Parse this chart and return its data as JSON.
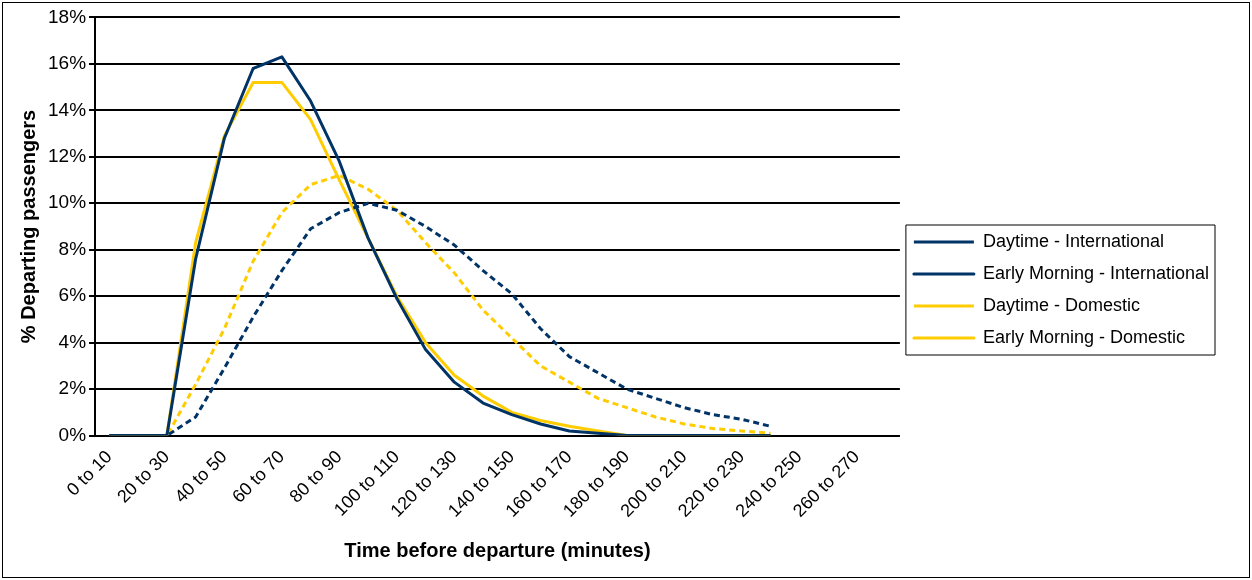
{
  "chart_data": {
    "type": "line",
    "xlabel": "Time before departure (minutes)",
    "ylabel": "% Departing passengers",
    "categories": [
      "0 to 10",
      null,
      "20 to 30",
      null,
      "40 to 50",
      null,
      "60 to 70",
      null,
      "80 to 90",
      null,
      "100 to 110",
      null,
      "120 to 130",
      null,
      "140 to 150",
      null,
      "160 to 170",
      null,
      "180 to 190",
      null,
      "200 to 210",
      null,
      "220 to 230",
      null,
      "240 to 250",
      null,
      "260 to 270",
      null
    ],
    "series": [
      {
        "name": "Daytime - International",
        "color": "#003366",
        "line_style": "dashed",
        "values": [
          0,
          0,
          0,
          0.8,
          2.9,
          5.1,
          7.1,
          8.9,
          9.6,
          10.0,
          9.7,
          9.0,
          8.2,
          7.1,
          6.1,
          4.6,
          3.4,
          2.7,
          2.0,
          1.6,
          1.2,
          0.9,
          0.7,
          0.4,
          null,
          null,
          null,
          null
        ]
      },
      {
        "name": "Early Morning - International",
        "color": "#003366",
        "line_style": "solid",
        "values": [
          0,
          0,
          0,
          7.6,
          12.8,
          15.8,
          16.3,
          14.4,
          11.8,
          8.5,
          5.9,
          3.7,
          2.3,
          1.4,
          0.9,
          0.5,
          0.2,
          0.1,
          0,
          0,
          0,
          0,
          0,
          0,
          null,
          null,
          null,
          null
        ]
      },
      {
        "name": "Daytime - Domestic",
        "color": "#ffcc00",
        "line_style": "dashed",
        "values": [
          0,
          0,
          0,
          2.2,
          4.6,
          7.5,
          9.6,
          10.8,
          11.2,
          10.6,
          9.7,
          8.3,
          7.0,
          5.4,
          4.2,
          3.0,
          2.3,
          1.6,
          1.2,
          0.8,
          0.5,
          0.3,
          0.2,
          0.1,
          null,
          null,
          null,
          null
        ]
      },
      {
        "name": "Early Morning - Domestic",
        "color": "#ffcc00",
        "line_style": "solid",
        "values": [
          0,
          0,
          0,
          8.3,
          12.9,
          15.2,
          15.2,
          13.6,
          11.0,
          8.5,
          6.0,
          4.0,
          2.6,
          1.7,
          1.0,
          0.65,
          0.4,
          0.2,
          0,
          0,
          0,
          0,
          0,
          0,
          null,
          null,
          null,
          null
        ]
      }
    ],
    "ylim": [
      0,
      18
    ],
    "yticks": [
      {
        "value": 0,
        "label": "0%"
      },
      {
        "value": 2,
        "label": "2%"
      },
      {
        "value": 4,
        "label": "4%"
      },
      {
        "value": 6,
        "label": "6%"
      },
      {
        "value": 8,
        "label": "8%"
      },
      {
        "value": 10,
        "label": "10%"
      },
      {
        "value": 12,
        "label": "12%"
      },
      {
        "value": 14,
        "label": "14%"
      },
      {
        "value": 16,
        "label": "16%"
      },
      {
        "value": 18,
        "label": "18%"
      }
    ],
    "grid": "y",
    "legend": "right",
    "marker": "none"
  }
}
